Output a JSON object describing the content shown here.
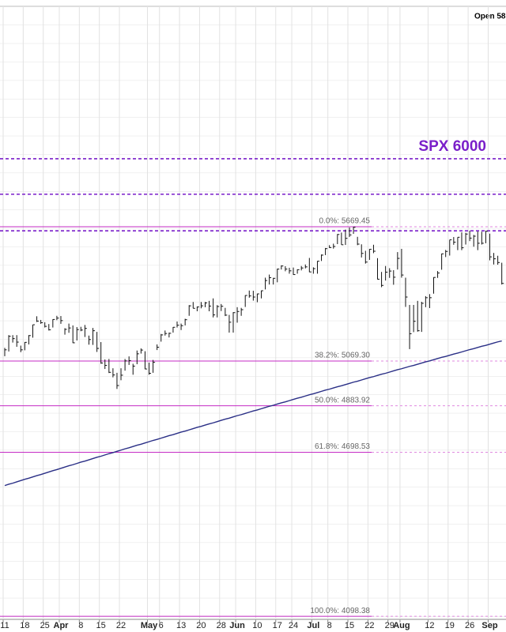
{
  "chart_data": {
    "type": "ohlc",
    "header": "Open 58",
    "log": true,
    "ylim": [
      4088,
      6812
    ],
    "bar_color": "#111111",
    "categories": [
      "11",
      null,
      null,
      null,
      null,
      "18",
      null,
      null,
      null,
      null,
      "25",
      null,
      null,
      null,
      "Apr",
      null,
      null,
      null,
      null,
      "8",
      null,
      null,
      null,
      null,
      "15",
      null,
      null,
      null,
      null,
      "22",
      null,
      null,
      null,
      null,
      null,
      null,
      "May",
      null,
      null,
      "6",
      null,
      null,
      null,
      null,
      "13",
      null,
      null,
      null,
      null,
      "20",
      null,
      null,
      null,
      null,
      "28",
      null,
      null,
      null,
      "Jun",
      null,
      null,
      null,
      null,
      "10",
      null,
      null,
      null,
      null,
      "17",
      null,
      null,
      null,
      "24",
      null,
      null,
      null,
      null,
      "Jul",
      null,
      null,
      null,
      "8",
      null,
      null,
      null,
      null,
      "15",
      null,
      null,
      null,
      null,
      "22",
      null,
      null,
      null,
      null,
      "29",
      null,
      null,
      "Aug",
      null,
      null,
      null,
      null,
      null,
      null,
      "12",
      null,
      null,
      null,
      null,
      "19",
      null,
      null,
      null,
      null,
      "26",
      null,
      null,
      null,
      null,
      "Sep",
      null,
      null,
      null
    ],
    "high": [
      5125,
      5180,
      5180,
      5180,
      5135,
      5150,
      5180,
      5225,
      5262,
      5246,
      5236,
      5228,
      5249,
      5264,
      5263,
      5210,
      5230,
      5222,
      5215,
      5216,
      5224,
      5178,
      5211,
      5194,
      5150,
      5076,
      5078,
      5039,
      5020,
      5039,
      5078,
      5089,
      5058,
      5114,
      5123,
      5111,
      5063,
      5074,
      5140,
      5185,
      5200,
      5191,
      5215,
      5239,
      5230,
      5251,
      5311,
      5325,
      5305,
      5325,
      5325,
      5330,
      5341,
      5311,
      5316,
      5299,
      5268,
      5280,
      5302,
      5299,
      5355,
      5376,
      5375,
      5362,
      5376,
      5434,
      5448,
      5433,
      5475,
      5490,
      5486,
      5479,
      5480,
      5472,
      5487,
      5494,
      5524,
      5481,
      5510,
      5540,
      5570,
      5583,
      5590,
      5635,
      5642,
      5656,
      5666,
      5669,
      5622,
      5587,
      5557,
      5565,
      5585,
      5523,
      5460,
      5487,
      5477,
      5468,
      5551,
      5566,
      5434,
      5312,
      5312,
      5330,
      5326,
      5351,
      5360,
      5436,
      5464,
      5544,
      5561,
      5608,
      5621,
      5620,
      5643,
      5641,
      5651,
      5631,
      5647,
      5646,
      5651,
      5637,
      5547,
      5534,
      5502
    ],
    "low": [
      5090,
      5110,
      5148,
      5130,
      5107,
      5115,
      5140,
      5169,
      5237,
      5229,
      5213,
      5200,
      5213,
      5245,
      5229,
      5182,
      5190,
      5146,
      5157,
      5197,
      5172,
      5139,
      5138,
      5108,
      5058,
      5036,
      5019,
      5001,
      4953,
      4989,
      5029,
      5053,
      5012,
      5056,
      5101,
      5035,
      5012,
      5020,
      5116,
      5152,
      5178,
      5170,
      5191,
      5213,
      5202,
      5222,
      5264,
      5297,
      5284,
      5297,
      5302,
      5284,
      5257,
      5257,
      5285,
      5263,
      5191,
      5191,
      5234,
      5264,
      5303,
      5344,
      5331,
      5324,
      5341,
      5381,
      5403,
      5403,
      5413,
      5471,
      5463,
      5452,
      5447,
      5452,
      5467,
      5476,
      5459,
      5452,
      5452,
      5510,
      5537,
      5570,
      5567,
      5588,
      5585,
      5584,
      5621,
      5636,
      5583,
      5526,
      5498,
      5515,
      5546,
      5426,
      5391,
      5421,
      5433,
      5402,
      5471,
      5434,
      5303,
      5120,
      5193,
      5195,
      5194,
      5302,
      5298,
      5362,
      5433,
      5470,
      5528,
      5535,
      5585,
      5560,
      5560,
      5586,
      5602,
      5576,
      5560,
      5586,
      5592,
      5513,
      5494,
      5493,
      5403
    ],
    "close": [
      5117,
      5175,
      5165,
      5150,
      5117,
      5149,
      5178,
      5225,
      5241,
      5234,
      5218,
      5203,
      5248,
      5254,
      5243,
      5205,
      5211,
      5147,
      5204,
      5202,
      5209,
      5161,
      5199,
      5123,
      5061,
      5051,
      5022,
      5011,
      4967,
      5010,
      5070,
      5071,
      5048,
      5100,
      5116,
      5036,
      5018,
      5064,
      5128,
      5181,
      5187,
      5188,
      5214,
      5223,
      5221,
      5247,
      5308,
      5297,
      5303,
      5308,
      5321,
      5307,
      5268,
      5305,
      5306,
      5267,
      5236,
      5278,
      5283,
      5291,
      5354,
      5352,
      5347,
      5361,
      5375,
      5421,
      5434,
      5431,
      5473,
      5487,
      5473,
      5465,
      5448,
      5470,
      5478,
      5483,
      5460,
      5475,
      5509,
      5537,
      5567,
      5572,
      5577,
      5633,
      5585,
      5615,
      5631,
      5667,
      5588,
      5545,
      5505,
      5564,
      5555,
      5427,
      5399,
      5459,
      5464,
      5436,
      5522,
      5446,
      5347,
      5186,
      5240,
      5199,
      5319,
      5344,
      5344,
      5435,
      5455,
      5543,
      5554,
      5608,
      5597,
      5620,
      5571,
      5635,
      5616,
      5625,
      5592,
      5592,
      5648,
      5529,
      5520,
      5503,
      5408
    ],
    "ma": {
      "color": "#2a2f86",
      "values": [
        4570,
        4575,
        4579,
        4584,
        4589,
        4594,
        4598,
        4603,
        4608,
        4612,
        4617,
        4622,
        4627,
        4631,
        4636,
        4641,
        4646,
        4650,
        4655,
        4660,
        4664,
        4669,
        4674,
        4679,
        4683,
        4688,
        4693,
        4697,
        4702,
        4707,
        4712,
        4716,
        4721,
        4726,
        4730,
        4735,
        4740,
        4745,
        4749,
        4754,
        4759,
        4764,
        4768,
        4773,
        4778,
        4782,
        4787,
        4792,
        4797,
        4801,
        4806,
        4811,
        4815,
        4820,
        4825,
        4830,
        4834,
        4839,
        4844,
        4848,
        4853,
        4858,
        4863,
        4867,
        4872,
        4877,
        4882,
        4886,
        4891,
        4896,
        4900,
        4905,
        4910,
        4915,
        4919,
        4924,
        4929,
        4933,
        4938,
        4943,
        4948,
        4952,
        4957,
        4962,
        4966,
        4971,
        4976,
        4981,
        4985,
        4990,
        4995,
        5000,
        5004,
        5009,
        5014,
        5018,
        5023,
        5028,
        5033,
        5037,
        5042,
        5047,
        5051,
        5056,
        5061,
        5066,
        5070,
        5075,
        5080,
        5085,
        5089,
        5094,
        5099,
        5103,
        5108,
        5113,
        5118,
        5122,
        5127,
        5132,
        5136,
        5141,
        5146,
        5151,
        5155
      ]
    },
    "fib_color": "#c42bc4",
    "fib_levels": [
      {
        "value": 5669.45,
        "label": "0.0%: 5669.45"
      },
      {
        "value": 5069.3,
        "label": "38.2%: 5069.30"
      },
      {
        "value": 4883.92,
        "label": "50.0%: 4883.92"
      },
      {
        "value": 4698.53,
        "label": "61.8%: 4698.53"
      },
      {
        "value": 4098.38,
        "label": "100.0%: 4098.38"
      }
    ],
    "level_color": "#7a1fc9",
    "levels": [
      {
        "value": 6000,
        "label": "SPX 6000"
      },
      {
        "value": 5825
      },
      {
        "value": 5650
      }
    ]
  }
}
